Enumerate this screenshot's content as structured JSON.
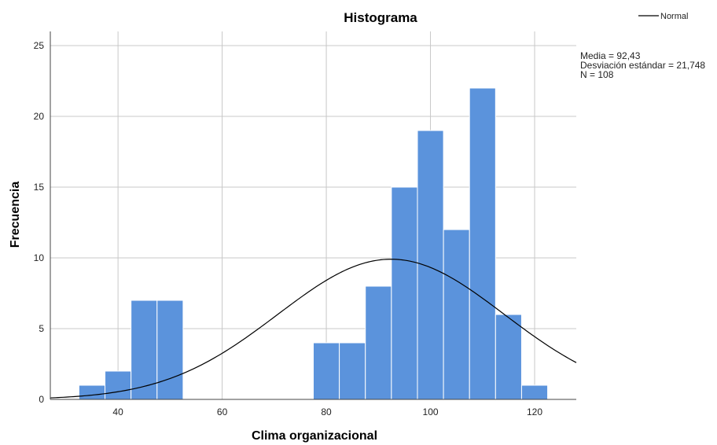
{
  "chart_data": {
    "type": "bar",
    "subtype": "histogram",
    "title": "Histograma",
    "xlabel": "Clima organizacional",
    "ylabel": "Frecuencia",
    "xlim": [
      27,
      128
    ],
    "ylim": [
      0,
      26
    ],
    "x_ticks": [
      40,
      60,
      80,
      100,
      120
    ],
    "y_ticks": [
      0,
      5,
      10,
      15,
      20,
      25
    ],
    "grid": true,
    "bar_color": "#5b93dc",
    "bins": [
      {
        "start": 32.5,
        "end": 37.5,
        "count": 1
      },
      {
        "start": 37.5,
        "end": 42.5,
        "count": 2
      },
      {
        "start": 42.5,
        "end": 47.5,
        "count": 7
      },
      {
        "start": 47.5,
        "end": 52.5,
        "count": 7
      },
      {
        "start": 77.5,
        "end": 82.5,
        "count": 4
      },
      {
        "start": 82.5,
        "end": 87.5,
        "count": 4
      },
      {
        "start": 87.5,
        "end": 92.5,
        "count": 8
      },
      {
        "start": 92.5,
        "end": 97.5,
        "count": 15
      },
      {
        "start": 97.5,
        "end": 102.5,
        "count": 19
      },
      {
        "start": 102.5,
        "end": 107.5,
        "count": 12
      },
      {
        "start": 107.5,
        "end": 112.5,
        "count": 22
      },
      {
        "start": 112.5,
        "end": 117.5,
        "count": 6
      },
      {
        "start": 117.5,
        "end": 122.5,
        "count": 1
      }
    ],
    "normal_curve": {
      "mean": 92.43,
      "sd": 21.748,
      "n": 108,
      "bin_width": 5
    },
    "legend": {
      "label": "Normal",
      "placement": "top-right"
    },
    "stats": {
      "mean_text": "Media = 92,43",
      "sd_text": "Desviación estándar = 21,748",
      "n_text": "N = 108"
    }
  }
}
